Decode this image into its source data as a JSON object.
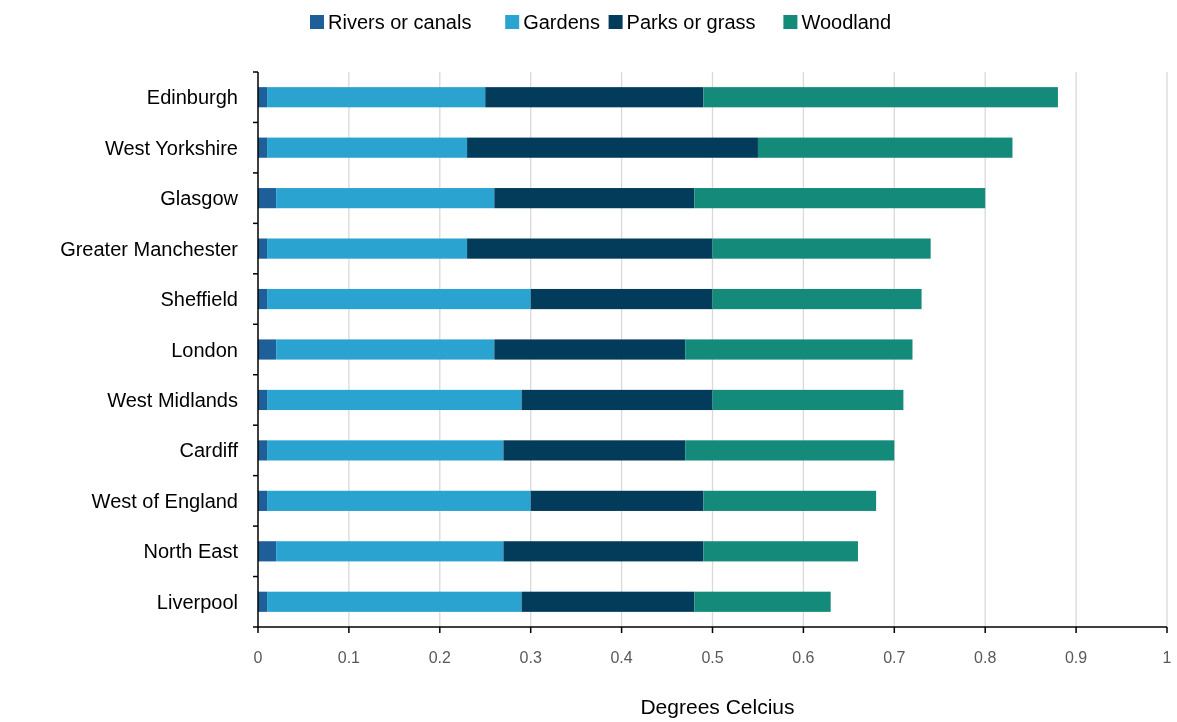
{
  "chart_data": {
    "type": "bar",
    "orientation": "horizontal",
    "stacked": true,
    "xlabel": "Degrees Celcius",
    "categories": [
      "Edinburgh",
      "West Yorkshire",
      "Glasgow",
      "Greater Manchester",
      "Sheffield",
      "London",
      "West Midlands",
      "Cardiff",
      "West of England",
      "North East",
      "Liverpool"
    ],
    "series": [
      {
        "name": "Rivers or canals",
        "color": "#1f5f99",
        "values": [
          0.01,
          0.01,
          0.02,
          0.01,
          0.01,
          0.02,
          0.01,
          0.01,
          0.01,
          0.02,
          0.01
        ]
      },
      {
        "name": "Gardens",
        "color": "#2ba3d0",
        "values": [
          0.24,
          0.22,
          0.24,
          0.22,
          0.29,
          0.24,
          0.28,
          0.26,
          0.29,
          0.25,
          0.28
        ]
      },
      {
        "name": "Parks or grass",
        "color": "#033c5a",
        "values": [
          0.24,
          0.32,
          0.22,
          0.27,
          0.2,
          0.21,
          0.21,
          0.2,
          0.19,
          0.22,
          0.19
        ]
      },
      {
        "name": "Woodland",
        "color": "#138a7a",
        "values": [
          0.39,
          0.28,
          0.32,
          0.24,
          0.23,
          0.25,
          0.21,
          0.23,
          0.19,
          0.17,
          0.15
        ]
      }
    ],
    "xlim": [
      0,
      1
    ],
    "xticks": [
      0,
      0.1,
      0.2,
      0.3,
      0.4,
      0.5,
      0.6,
      0.7,
      0.8,
      0.9,
      1
    ],
    "grid": "x",
    "legend": "top"
  }
}
